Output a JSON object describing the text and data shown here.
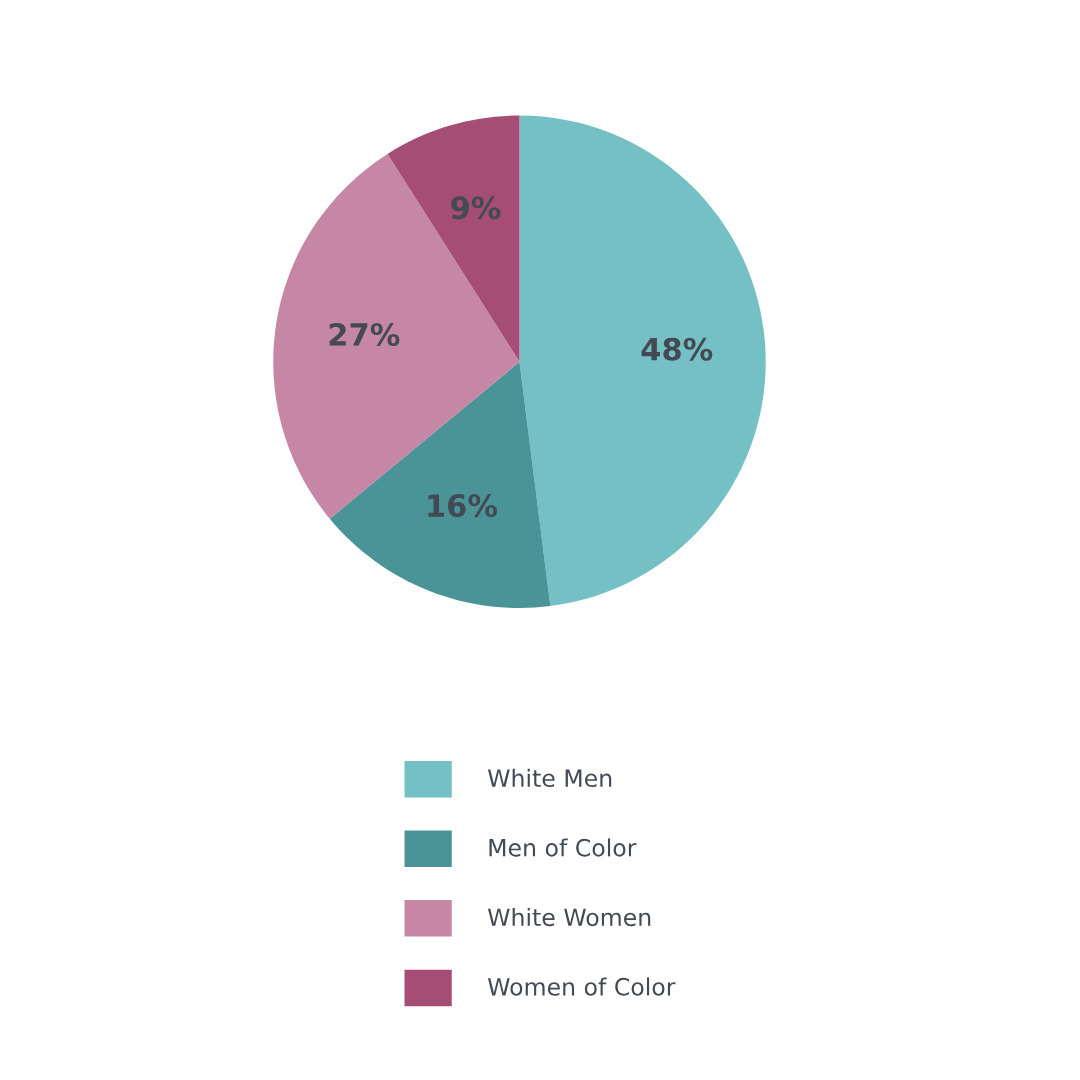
{
  "chart_data": {
    "type": "pie",
    "categories": [
      "White Men",
      "Men of Color",
      "White Women",
      "Women of Color"
    ],
    "values": [
      48,
      16,
      27,
      9
    ],
    "colors": [
      "#74c0c4",
      "#4a9397",
      "#c587a5",
      "#a64d76"
    ],
    "value_labels": [
      "48%",
      "16%",
      "27%",
      "9%"
    ],
    "legend": "bottom"
  }
}
